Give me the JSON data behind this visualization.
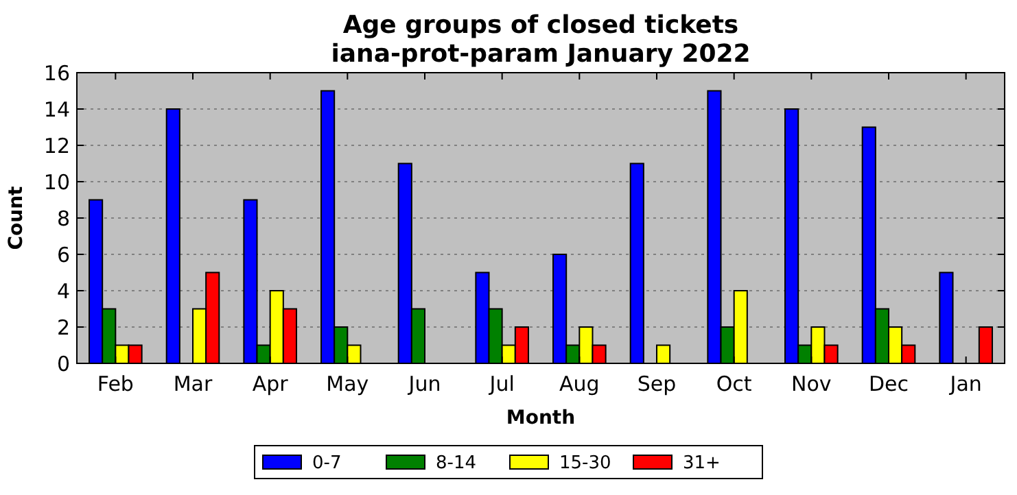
{
  "chart_data": {
    "type": "bar",
    "title": "Age groups of closed tickets\niana-prot-param January 2022",
    "xlabel": "Month",
    "ylabel": "Count",
    "categories": [
      "Feb",
      "Mar",
      "Apr",
      "May",
      "Jun",
      "Jul",
      "Aug",
      "Sep",
      "Oct",
      "Nov",
      "Dec",
      "Jan"
    ],
    "series": [
      {
        "name": "0-7",
        "color": "#0000ff",
        "values": [
          9,
          14,
          9,
          15,
          11,
          5,
          6,
          11,
          15,
          14,
          13,
          5
        ]
      },
      {
        "name": "8-14",
        "color": "#008000",
        "values": [
          3,
          0,
          1,
          2,
          3,
          3,
          1,
          0,
          2,
          1,
          3,
          0
        ]
      },
      {
        "name": "15-30",
        "color": "#ffff00",
        "values": [
          1,
          3,
          4,
          1,
          0,
          1,
          2,
          1,
          4,
          2,
          2,
          0
        ]
      },
      {
        "name": "31+",
        "color": "#ff0000",
        "values": [
          1,
          5,
          3,
          0,
          0,
          2,
          1,
          0,
          0,
          1,
          1,
          2
        ]
      }
    ],
    "ylim": [
      0,
      16
    ],
    "yticks": [
      0,
      2,
      4,
      6,
      8,
      10,
      12,
      14,
      16
    ],
    "grid": "y",
    "legend": "bottom"
  }
}
